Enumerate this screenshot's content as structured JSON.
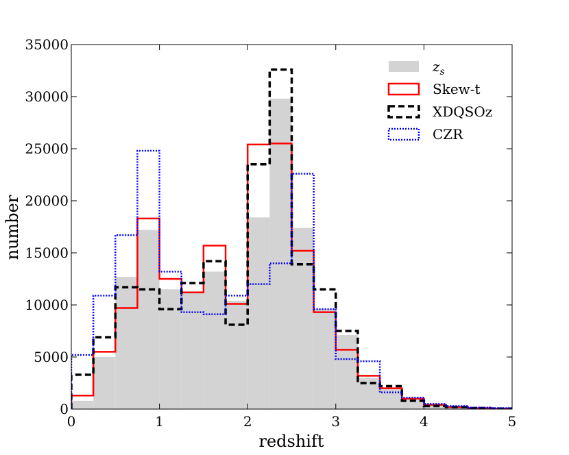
{
  "chart_data": {
    "type": "histogram",
    "xlabel": "redshift",
    "ylabel": "number",
    "xlim": [
      0,
      5
    ],
    "ylim": [
      0,
      35000
    ],
    "xticks": [
      0,
      1,
      2,
      3,
      4,
      5
    ],
    "yticks": [
      0,
      5000,
      10000,
      15000,
      20000,
      25000,
      30000,
      35000
    ],
    "bin_edges": [
      0,
      0.25,
      0.5,
      0.75,
      1.0,
      1.25,
      1.5,
      1.75,
      2.0,
      2.25,
      2.5,
      2.75,
      3.0,
      3.25,
      3.5,
      3.75,
      4.0,
      4.25,
      4.5,
      4.75,
      5.0
    ],
    "legend_position": "top-right",
    "series": [
      {
        "key": "zs",
        "name": "z",
        "name_subscript": "s",
        "style": "filled",
        "color": "#d3d3d3",
        "values": [
          800,
          5000,
          12700,
          17200,
          11500,
          11300,
          13200,
          10400,
          18400,
          29800,
          17400,
          9600,
          7100,
          3000,
          2000,
          1000,
          300,
          200,
          100,
          50
        ]
      },
      {
        "key": "skewt",
        "name": "Skew-t",
        "style": "solid",
        "color": "#ff0000",
        "values": [
          1300,
          5500,
          9700,
          18300,
          12500,
          11200,
          15700,
          10100,
          25400,
          25500,
          15200,
          9300,
          5700,
          3200,
          2000,
          1000,
          400,
          200,
          100,
          50
        ]
      },
      {
        "key": "xdqsoz",
        "name": "XDQSOz",
        "style": "dashed",
        "color": "#000000",
        "values": [
          3300,
          6900,
          11700,
          11500,
          9600,
          12100,
          14200,
          8100,
          23500,
          32600,
          13900,
          11500,
          7500,
          2500,
          2200,
          800,
          300,
          200,
          100,
          50
        ]
      },
      {
        "key": "czr",
        "name": "CZR",
        "style": "dotted",
        "color": "#0000ff",
        "values": [
          5200,
          10900,
          16700,
          24800,
          13200,
          9300,
          9100,
          10900,
          12000,
          14000,
          22600,
          9600,
          4800,
          4600,
          1600,
          1100,
          500,
          300,
          150,
          100
        ]
      }
    ]
  }
}
